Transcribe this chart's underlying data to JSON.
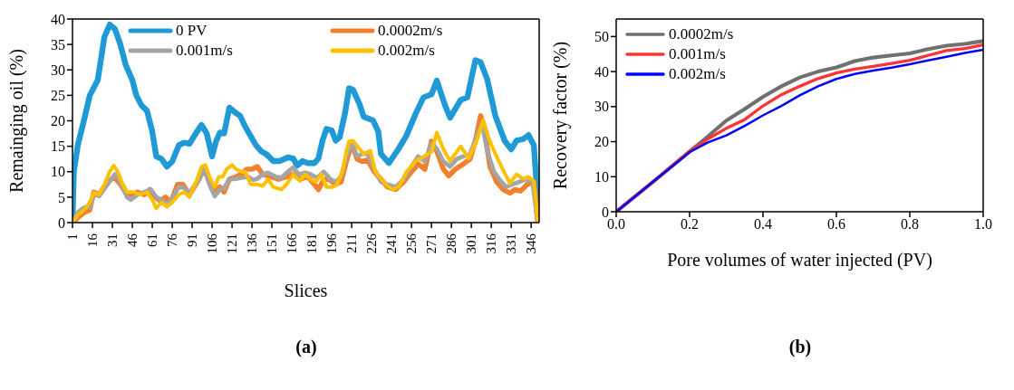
{
  "chart_data": [
    {
      "type": "line",
      "xlabel": "Slices",
      "ylabel": "Remainging oil (%)",
      "xlim": [
        1,
        352
      ],
      "ylim": [
        0,
        40
      ],
      "xticks": [
        1,
        16,
        31,
        46,
        61,
        76,
        91,
        106,
        121,
        136,
        151,
        166,
        181,
        196,
        211,
        226,
        241,
        256,
        271,
        286,
        301,
        316,
        331,
        346
      ],
      "yticks": [
        0,
        5,
        10,
        15,
        20,
        25,
        30,
        35,
        40
      ],
      "legend": "top",
      "annotations": [
        "(a)"
      ],
      "series": [
        {
          "name": "0 PV",
          "color": "#1f9ad6",
          "x": [
            1,
            2,
            5,
            10,
            14,
            20,
            25,
            29,
            33,
            37,
            41,
            46,
            49,
            53,
            57,
            61,
            64,
            68,
            72,
            76,
            81,
            85,
            89,
            93,
            98,
            102,
            106,
            109,
            112,
            115,
            119,
            124,
            127,
            131,
            135,
            139,
            143,
            147,
            152,
            157,
            163,
            167,
            170,
            174,
            178,
            183,
            186,
            189,
            192,
            196,
            199,
            202,
            206,
            209,
            212,
            217,
            220,
            227,
            231,
            233,
            239,
            246,
            252,
            260,
            265,
            271,
            275,
            281,
            285,
            293,
            298,
            304,
            308,
            313,
            319,
            326,
            331,
            335,
            340,
            344,
            348,
            352
          ],
          "values": [
            0,
            10,
            15.2,
            20.5,
            25,
            28,
            36.5,
            38.9,
            38,
            35,
            31,
            28,
            25,
            23,
            22,
            17.9,
            13,
            12.5,
            11,
            12,
            15.2,
            15.7,
            15.5,
            17.2,
            19.2,
            17.5,
            13,
            16,
            17.7,
            17.5,
            22.6,
            21.5,
            21,
            18.8,
            17,
            15.2,
            14,
            13.4,
            12.1,
            12.1,
            12.8,
            12.6,
            11.2,
            12.1,
            11.7,
            11.7,
            12.6,
            16.1,
            18.4,
            18.1,
            16.1,
            16.8,
            21.5,
            26.4,
            26.1,
            23.2,
            20.8,
            20.1,
            17.9,
            13.5,
            11.7,
            14.4,
            17,
            21.9,
            24.6,
            25.2,
            27.9,
            23.2,
            20.6,
            24.1,
            24.6,
            31.9,
            31.5,
            28.1,
            21,
            16.1,
            14.4,
            16.1,
            16.4,
            17.2,
            15.2,
            0
          ]
        },
        {
          "name": "0.0002m/s",
          "color": "#f47f2a",
          "x": [
            1,
            5,
            10,
            14,
            17,
            21,
            26,
            30,
            33,
            37,
            42,
            46,
            50,
            55,
            59,
            63,
            67,
            71,
            75,
            80,
            84,
            89,
            95,
            100,
            104,
            108,
            112,
            115,
            119,
            124,
            128,
            132,
            136,
            140,
            144,
            150,
            156,
            162,
            167,
            172,
            178,
            183,
            186,
            190,
            194,
            199,
            203,
            207,
            211,
            215,
            219,
            223,
            228,
            233,
            238,
            244,
            250,
            256,
            261,
            266,
            271,
            275,
            280,
            284,
            289,
            295,
            300,
            304,
            308,
            311,
            315,
            320,
            325,
            330,
            334,
            338,
            343,
            348,
            351
          ],
          "values": [
            0,
            1,
            2,
            2.5,
            6,
            5.5,
            7.5,
            8.5,
            8.8,
            7.5,
            5.5,
            5.5,
            6,
            5.5,
            6.5,
            5,
            4.3,
            5,
            4,
            7.5,
            7.5,
            5.5,
            8,
            10.5,
            8,
            6.5,
            7,
            6,
            8.5,
            9,
            9.5,
            10.5,
            10.5,
            11,
            9.5,
            9,
            8.5,
            9,
            9.5,
            8.5,
            9,
            7.5,
            6.5,
            8.5,
            8.5,
            7.5,
            8,
            12,
            15.5,
            12.5,
            12,
            12.3,
            10,
            8.5,
            7,
            6.5,
            8,
            10,
            11.5,
            10.5,
            16,
            14,
            10.5,
            9.2,
            10.5,
            11.5,
            12.5,
            16,
            21,
            18,
            11,
            8,
            6.5,
            5.8,
            6.5,
            6.2,
            7.5,
            8,
            0
          ]
        },
        {
          "name": "0.001m/s",
          "color": "#a5a5a5",
          "x": [
            1,
            5,
            10,
            14,
            17,
            21,
            26,
            30,
            33,
            37,
            42,
            45,
            50,
            55,
            60,
            64,
            68,
            72,
            76,
            81,
            85,
            89,
            95,
            100,
            104,
            108,
            112,
            115,
            119,
            124,
            128,
            133,
            137,
            140,
            144,
            148,
            154,
            158,
            163,
            167,
            171,
            176,
            180,
            185,
            190,
            195,
            199,
            203,
            207,
            211,
            215,
            219,
            223,
            228,
            233,
            238,
            244,
            250,
            256,
            261,
            266,
            271,
            275,
            280,
            285,
            290,
            295,
            300,
            305,
            309,
            313,
            318,
            322,
            327,
            332,
            337,
            342,
            347,
            351
          ],
          "values": [
            0,
            2,
            3,
            3,
            5.5,
            5.2,
            7,
            8.5,
            9.5,
            8,
            5,
            4.5,
            5.5,
            6,
            6.5,
            5,
            4.5,
            3.5,
            4.8,
            7,
            6.8,
            5.8,
            8,
            10.5,
            7.5,
            5.2,
            6.5,
            6.8,
            8.5,
            8.6,
            8.8,
            9,
            8.4,
            8.6,
            9.5,
            9.8,
            9,
            8.8,
            10,
            10.8,
            9.5,
            9.8,
            9.5,
            8.8,
            10,
            8.5,
            8,
            9,
            13,
            15.8,
            13,
            13.5,
            13.5,
            10.5,
            8,
            7.5,
            7,
            8.5,
            11,
            13,
            12,
            15.5,
            14.5,
            12,
            11,
            12.5,
            13,
            13.5,
            17,
            19.5,
            14,
            10,
            8.5,
            7,
            7.5,
            8,
            8.5,
            8,
            0
          ]
        },
        {
          "name": "0.002m/s",
          "color": "#ffc000",
          "x": [
            1,
            5,
            10,
            14,
            17,
            21,
            25,
            29,
            32,
            35,
            38,
            42,
            47,
            52,
            57,
            61,
            64,
            68,
            72,
            76,
            81,
            85,
            89,
            94,
            98,
            101,
            104,
            108,
            111,
            114,
            117,
            121,
            124,
            128,
            131,
            135,
            140,
            144,
            148,
            152,
            158,
            162,
            167,
            172,
            176,
            180,
            184,
            188,
            192,
            197,
            200,
            204,
            207,
            209,
            212,
            217,
            220,
            225,
            229,
            233,
            238,
            242,
            247,
            252,
            259,
            263,
            271,
            275,
            280,
            285,
            293,
            299,
            305,
            310,
            314,
            319,
            324,
            330,
            335,
            340,
            344,
            348,
            351
          ],
          "values": [
            0,
            1.5,
            2.5,
            4,
            5.9,
            5.5,
            7.5,
            10,
            11.2,
            10,
            8,
            6,
            6,
            5.5,
            6,
            4.5,
            2.8,
            4,
            3.1,
            4,
            5.5,
            6,
            5,
            8,
            11,
            11.3,
            9,
            7,
            9,
            9,
            10.5,
            11.3,
            10.5,
            10,
            10,
            7.5,
            7.5,
            7.2,
            8.5,
            7,
            6.5,
            7.5,
            9.5,
            8.2,
            9.5,
            8.5,
            8,
            9.5,
            7,
            7,
            7.5,
            10,
            14,
            16,
            16.1,
            14.4,
            13.5,
            14.1,
            9.9,
            8.6,
            7.2,
            6.4,
            7.2,
            9.9,
            12.1,
            12.6,
            13.9,
            17.7,
            14.4,
            12.1,
            15,
            12.6,
            16.1,
            20.1,
            16.6,
            13.5,
            10.8,
            7.7,
            9.5,
            8.6,
            9,
            8.1,
            0
          ]
        }
      ]
    },
    {
      "type": "line",
      "xlabel": "Pore volumes of water injected (PV)",
      "ylabel": "Recovery factor (%)",
      "xlim": [
        0,
        1
      ],
      "ylim": [
        0,
        55
      ],
      "xticks": [
        {
          "value": 0,
          "label": "0.0"
        },
        {
          "value": 0.2,
          "label": "0.2"
        },
        {
          "value": 0.4,
          "label": "0.4"
        },
        {
          "value": 0.6,
          "label": "0.6"
        },
        {
          "value": 0.8,
          "label": "0.8"
        },
        {
          "value": 1,
          "label": "1.0"
        }
      ],
      "yticks": [
        0,
        10,
        20,
        30,
        40,
        50
      ],
      "legend": "top left",
      "annotations": [
        "(b)"
      ],
      "x": [
        0,
        0.1,
        0.2,
        0.25,
        0.3,
        0.35,
        0.4,
        0.45,
        0.5,
        0.55,
        0.6,
        0.65,
        0.7,
        0.75,
        0.8,
        0.85,
        0.9,
        0.95,
        1
      ],
      "series": [
        {
          "name": "0.0002m/s",
          "color": "#707070",
          "values": [
            0,
            8.5,
            17.2,
            21.5,
            26,
            29.3,
            32.8,
            35.8,
            38.3,
            40,
            41.2,
            43,
            44,
            44.6,
            45.2,
            46.4,
            47.4,
            47.9,
            48.7
          ]
        },
        {
          "name": "0.001m/s",
          "color": "#ff3333",
          "values": [
            0,
            8.5,
            17.2,
            20.8,
            23.8,
            26.3,
            30.2,
            33.4,
            35.8,
            38,
            39.6,
            40.7,
            41.5,
            42.3,
            43.2,
            44.6,
            46,
            46.6,
            47.6
          ]
        },
        {
          "name": "0.002m/s",
          "color": "#0000ff",
          "values": [
            0,
            8.5,
            17,
            19.8,
            21.8,
            24.5,
            27.5,
            30.2,
            33.2,
            35.8,
            37.9,
            39.3,
            40.3,
            41.1,
            42.1,
            43.2,
            44.2,
            45.3,
            46.2
          ]
        }
      ]
    }
  ]
}
